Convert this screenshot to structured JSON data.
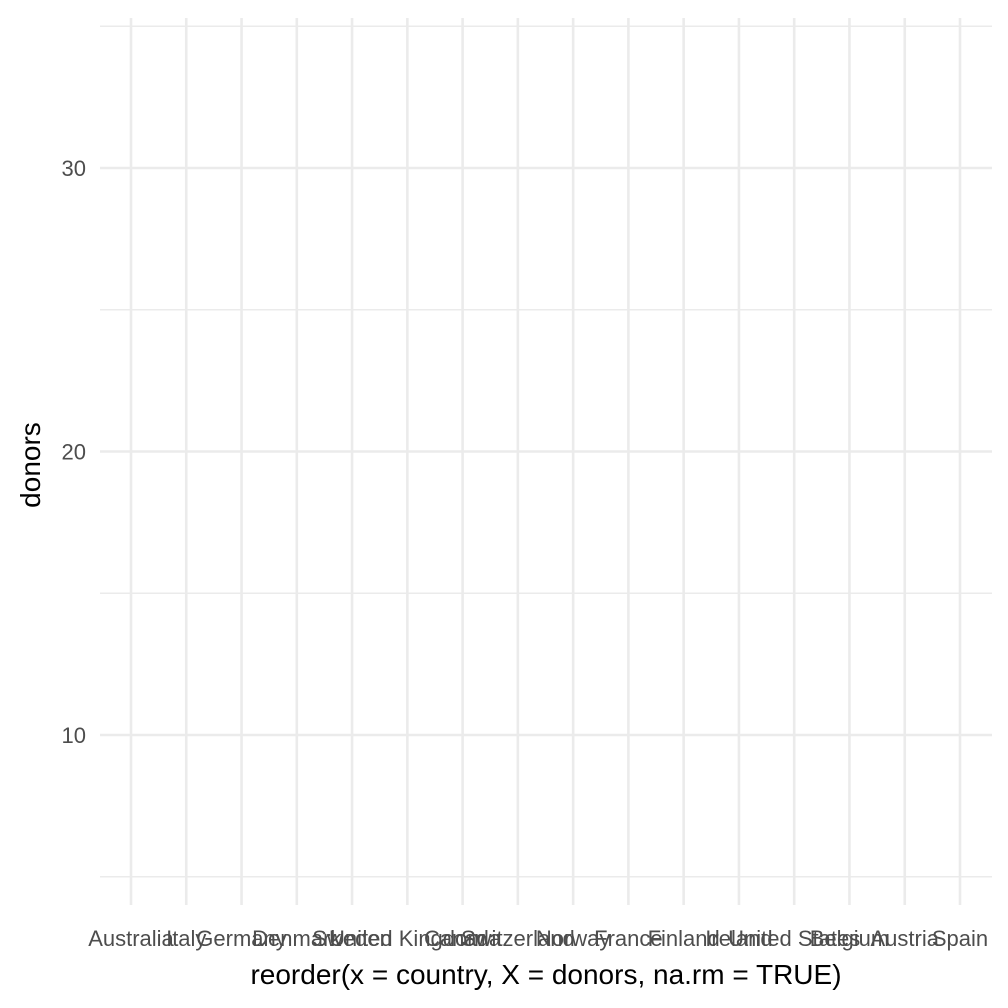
{
  "chart_data": {
    "type": "scatter",
    "title": "",
    "xlabel": "reorder(x = country, X = donors, na.rm = TRUE)",
    "ylabel": "donors",
    "categories": [
      "Australia",
      "Italy",
      "Germany",
      "Denmark",
      "Sweden",
      "United Kingdom",
      "Canada",
      "Switzerland",
      "Norway",
      "France",
      "Finland",
      "Ireland",
      "United States",
      "Belgium",
      "Austria",
      "Spain"
    ],
    "series": [],
    "y_ticks": [
      10,
      20,
      30
    ],
    "ylim": [
      4.7,
      35.3
    ],
    "grid": true,
    "legend": "none",
    "colors": {
      "grid": "#ebebeb",
      "tick_text": "#4d4d4d",
      "title_text": "#000000",
      "background": "#ffffff"
    }
  }
}
